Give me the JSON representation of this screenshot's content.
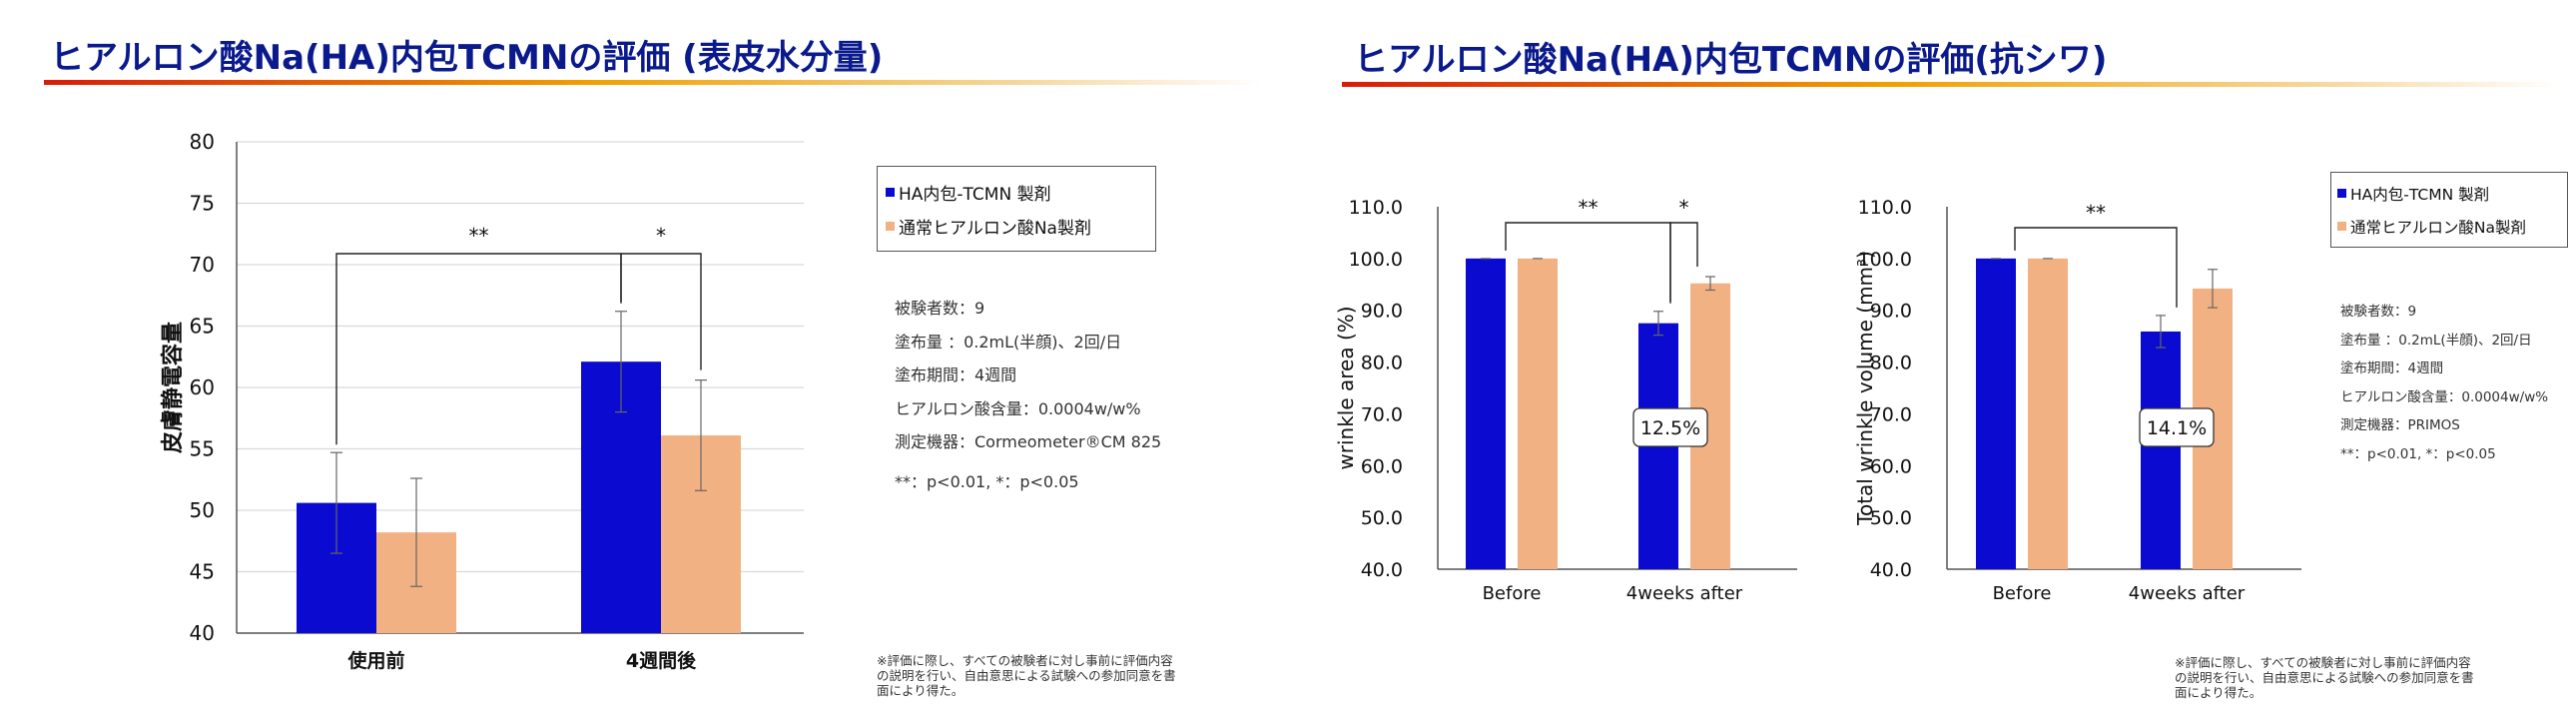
{
  "colors": {
    "ha_tcmn": "#0a0ad0",
    "normal_ha": "#f2b183",
    "title": "#0a1a8c"
  },
  "left": {
    "title": "ヒアルロン酸Na(HA)内包TCMNの評価 (表皮水分量)",
    "legend": [
      "HA内包-TCMN 製剤",
      "通常ヒアルロン酸Na製剤"
    ],
    "info": [
      "被験者数：9",
      "塗布量 ：0.2mL(半顔)、2回/日",
      "塗布期間：4週間",
      "ヒアルロン酸含量：0.0004w/w%",
      "測定機器：Cormeometer®CM 825",
      "**：p<0.01, *：p<0.05"
    ],
    "note": [
      "※評価に際し、すべての被験者に対し事前に評価内容",
      "の説明を行い、自由意思による試験への参加同意を書",
      "面により得た。"
    ]
  },
  "right": {
    "title": "ヒアルロン酸Na(HA)内包TCMNの評価(抗シワ)",
    "legend": [
      "HA内包-TCMN 製剤",
      "通常ヒアルロン酸Na製剤"
    ],
    "info": [
      "被験者数：9",
      "塗布量 ：0.2mL(半顔)、2回/日",
      "塗布期間：4週間",
      "ヒアルロン酸含量：0.0004w/w%",
      "測定機器：PRIMOS",
      "**：p<0.01, *：p<0.05"
    ],
    "note": [
      "※評価に際し、すべての被験者に対し事前に評価内容",
      "の説明を行い、自由意思による試験への参加同意を書",
      "面により得た。"
    ]
  },
  "chart_data": [
    {
      "type": "bar",
      "ylabel": "皮膚静電容量",
      "categories": [
        "使用前",
        "4週間後"
      ],
      "ylim": [
        40,
        80
      ],
      "yticks": [
        "40",
        "45",
        "50",
        "55",
        "60",
        "65",
        "70",
        "75",
        "80"
      ],
      "series": [
        {
          "values": [
            50.6,
            62.1
          ],
          "errors": [
            4.1,
            4.1
          ]
        },
        {
          "values": [
            48.2,
            56.1
          ],
          "errors": [
            4.4,
            4.5
          ]
        }
      ],
      "grid": true,
      "significance": [
        {
          "label": "**",
          "from": "使用前",
          "to": "4週間後"
        },
        {
          "label": "*",
          "within": "4週間後"
        }
      ]
    },
    {
      "type": "bar",
      "ylabel": "wrinkle area (%)",
      "categories": [
        "Before",
        "4weeks after"
      ],
      "ylim": [
        40,
        110
      ],
      "yticks": [
        "40.0",
        "50.0",
        "60.0",
        "70.0",
        "80.0",
        "90.0",
        "100.0",
        "110.0"
      ],
      "series": [
        {
          "values": [
            100.0,
            87.5
          ],
          "errors": [
            0,
            2.3
          ]
        },
        {
          "values": [
            100.0,
            95.2
          ],
          "errors": [
            0,
            1.3
          ]
        }
      ],
      "callout": "12.5%",
      "significance": [
        {
          "label": "**",
          "from": "Before",
          "to": "4weeks after"
        },
        {
          "label": "*",
          "within": "4weeks after"
        }
      ]
    },
    {
      "type": "bar",
      "ylabel": "Total wrinkle volume (mm³)",
      "categories": [
        "Before",
        "4weeks after"
      ],
      "ylim": [
        40,
        110
      ],
      "yticks": [
        "40.0",
        "50.0",
        "60.0",
        "70.0",
        "80.0",
        "90.0",
        "100.0",
        "110.0"
      ],
      "series": [
        {
          "values": [
            100.0,
            85.9
          ],
          "errors": [
            0,
            3.1
          ]
        },
        {
          "values": [
            100.0,
            94.2
          ],
          "errors": [
            0,
            3.7
          ]
        }
      ],
      "callout": "14.1%",
      "significance": [
        {
          "label": "**",
          "from": "Before",
          "to": "4weeks after"
        }
      ]
    }
  ]
}
